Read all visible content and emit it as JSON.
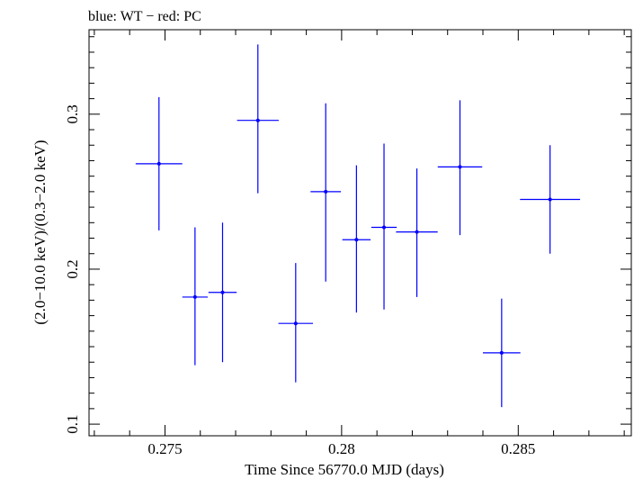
{
  "chart_data": {
    "type": "scatter",
    "title": "blue: WT − red: PC",
    "xlabel": "Time Since 56770.0 MJD (days)",
    "ylabel": "(2.0−10.0 keV)/(0.3−2.0 keV)",
    "xlim": [
      0.27285,
      0.2882
    ],
    "ylim": [
      0.0925,
      0.3545
    ],
    "x_ticks": [
      "0.275",
      "0.28",
      "0.285"
    ],
    "y_ticks": [
      "0.1",
      "0.2",
      "0.3"
    ],
    "grid": false,
    "series": [
      {
        "color": "#0000ff",
        "points": [
          {
            "x": 0.27483,
            "xerr": 0.00066,
            "y": 0.268,
            "ylo": 0.225,
            "yhi": 0.311
          },
          {
            "x": 0.27585,
            "xerr": 0.00036,
            "y": 0.182,
            "ylo": 0.138,
            "yhi": 0.227
          },
          {
            "x": 0.27663,
            "xerr": 0.0004,
            "y": 0.185,
            "ylo": 0.14,
            "yhi": 0.23
          },
          {
            "x": 0.27763,
            "xerr": 0.00059,
            "y": 0.296,
            "ylo": 0.249,
            "yhi": 0.345
          },
          {
            "x": 0.2787,
            "xerr": 0.00049,
            "y": 0.165,
            "ylo": 0.127,
            "yhi": 0.204
          },
          {
            "x": 0.27955,
            "xerr": 0.00043,
            "y": 0.25,
            "ylo": 0.192,
            "yhi": 0.307
          },
          {
            "x": 0.28042,
            "xerr": 0.0004,
            "y": 0.219,
            "ylo": 0.172,
            "yhi": 0.267
          },
          {
            "x": 0.2812,
            "xerr": 0.00036,
            "y": 0.227,
            "ylo": 0.174,
            "yhi": 0.281
          },
          {
            "x": 0.28213,
            "xerr": 0.00059,
            "y": 0.224,
            "ylo": 0.182,
            "yhi": 0.265
          },
          {
            "x": 0.28335,
            "xerr": 0.00063,
            "y": 0.266,
            "ylo": 0.222,
            "yhi": 0.309
          },
          {
            "x": 0.28453,
            "xerr": 0.00053,
            "y": 0.146,
            "ylo": 0.111,
            "yhi": 0.181
          },
          {
            "x": 0.2859,
            "xerr": 0.00085,
            "y": 0.245,
            "ylo": 0.21,
            "yhi": 0.28
          }
        ]
      }
    ]
  }
}
